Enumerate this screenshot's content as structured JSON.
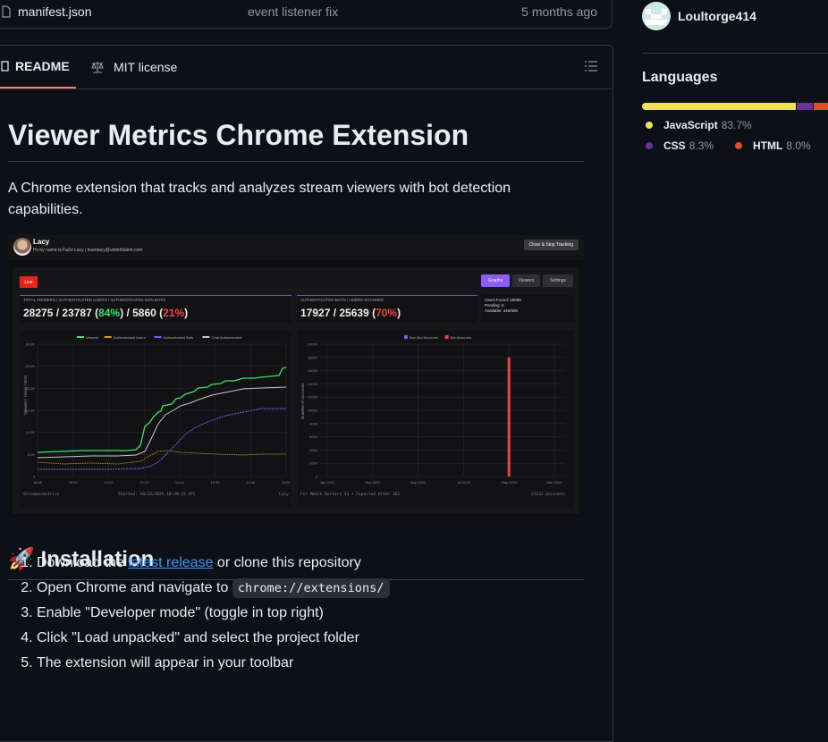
{
  "file_row": {
    "name": "manifest.json",
    "message": "event listener fix",
    "age": "5 months ago"
  },
  "tabs": [
    {
      "label": "README"
    },
    {
      "label": "MIT license"
    }
  ],
  "readme": {
    "title": "Viewer Metrics Chrome Extension",
    "description": "A Chrome extension that tracks and analyzes stream viewers with bot detection capabilities.",
    "install_heading": "🚀 Installation",
    "steps": {
      "s1_pre": "Download the",
      "s1_link": "latest release",
      "s1_post": "or clone this repository",
      "s2_pre": "Open Chrome and navigate to",
      "s2_code": "chrome://extensions/",
      "s3": "Enable \"Developer mode\" (toggle in top right)",
      "s4": "Click \"Load unpacked\" and select the project folder",
      "s5": "The extension will appear in your toolbar"
    }
  },
  "screenshot": {
    "channel": "Lacy",
    "bio": "Hi my name is FaZe Lacy | teamlacy@unitedtalent.com",
    "stop_button": "Close & Stop Tracking",
    "live": "Live",
    "tabs": [
      "Graphs",
      "Viewers",
      "Settings"
    ],
    "stat1_label": "TOTAL VIEWERS / AUTHENTICATED USERS / AUTHENTICATED NON BOTS",
    "stat1": {
      "a": "28275 / 23787 (",
      "b": "84%",
      "c": ") / 5860 (",
      "d": "21%",
      "e": ")"
    },
    "stat2_label": "AUTHENTICATED BOTS / USERS SCANNED",
    "stat2": {
      "a": "17927 / 25639 (",
      "b": "70%",
      "c": ")"
    },
    "side": {
      "found": "Users Found: 25658",
      "pending": "Pending: 0",
      "available": "Available: 446/500"
    },
    "footer_left1": "Streamermetrics",
    "footer_mid1": "Started: 10/22/2025 18:39:22 UTC",
    "footer_right1": "Lacy",
    "footer_left2": "For Match Botters 33 • Expected After 365",
    "footer_right2": "21132 accounts"
  },
  "chart_data": [
    {
      "type": "line",
      "legend": [
        "Viewers",
        "Authenticated Users",
        "Authenticated Bots",
        "Total Authenticated"
      ],
      "ylabel": "Viewers / Users / Bots",
      "y_ticks": [
        "0",
        "5.0K",
        "10.0K",
        "15.0K",
        "20.0K",
        "25.0K",
        "30.0K"
      ],
      "x_ticks": [
        "18:48",
        "18:51",
        "19:02",
        "19:13",
        "19:24",
        "19:35",
        "19:46",
        "19:57"
      ],
      "colors": {
        "viewers": "#3ee36b",
        "auth_users": "#d99a1e",
        "auth_bots": "#7c5cf0",
        "total_auth": "#c7c7cc"
      }
    },
    {
      "type": "bar",
      "legend": [
        "Non-Bot Accounts",
        "Bot Accounts"
      ],
      "ylabel": "Number of Accounts",
      "y_ticks": [
        "0",
        "2000",
        "4000",
        "6000",
        "8000",
        "10000",
        "12000",
        "14000",
        "16000",
        "18000",
        "20000"
      ],
      "x_ticks": [
        "Jan 2021",
        "Nov 2021",
        "Sep 2022",
        "Jul 2023",
        "May 2024",
        "Mar 2025"
      ],
      "categories": [
        "May 2024"
      ],
      "series": [
        {
          "name": "Bot Accounts",
          "values": [
            18000
          ]
        }
      ],
      "ylim": [
        0,
        20000
      ],
      "colors": {
        "non_bot": "#7c5cf0",
        "bot": "#ef4444"
      }
    }
  ],
  "sidebar": {
    "username": "Loultorge414",
    "languages_title": "Languages",
    "languages": [
      {
        "name": "JavaScript",
        "pct": "83.7%",
        "value": 83.7,
        "color": "#f1e05a"
      },
      {
        "name": "CSS",
        "pct": "8.3%",
        "value": 8.3,
        "color": "#663399"
      },
      {
        "name": "HTML",
        "pct": "8.0%",
        "value": 8.0,
        "color": "#e34c26"
      }
    ]
  }
}
